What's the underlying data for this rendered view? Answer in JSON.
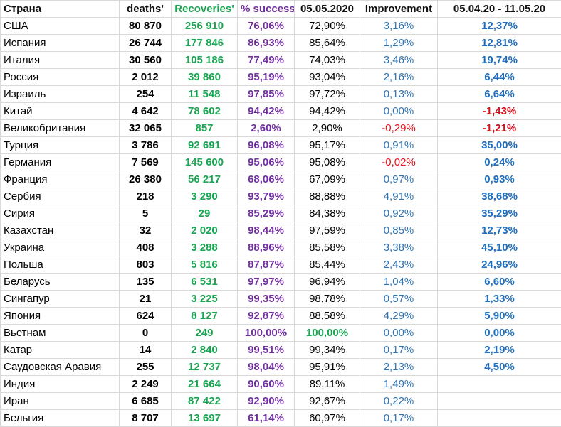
{
  "headers": [
    "Страна",
    "deaths'",
    "Recoveries'",
    "% success",
    "05.05.2020",
    "Improvement",
    "05.04.20 - 11.05.20"
  ],
  "rows": [
    {
      "country": "США",
      "deaths": "80 870",
      "recoveries": "256 910",
      "success": "76,06%",
      "may05": "72,90%",
      "improvement": "3,16%",
      "period": "12,37%"
    },
    {
      "country": "Испания",
      "deaths": "26 744",
      "recoveries": "177 846",
      "success": "86,93%",
      "may05": "85,64%",
      "improvement": "1,29%",
      "period": "12,81%"
    },
    {
      "country": "Италия",
      "deaths": "30 560",
      "recoveries": "105 186",
      "success": "77,49%",
      "may05": "74,03%",
      "improvement": "3,46%",
      "period": "19,74%"
    },
    {
      "country": "Россия",
      "deaths": "2 012",
      "recoveries": "39 860",
      "success": "95,19%",
      "may05": "93,04%",
      "improvement": "2,16%",
      "period": "6,44%"
    },
    {
      "country": "Израиль",
      "deaths": "254",
      "recoveries": "11 548",
      "success": "97,85%",
      "may05": "97,72%",
      "improvement": "0,13%",
      "period": "6,64%"
    },
    {
      "country": "Китай",
      "deaths": "4 642",
      "recoveries": "78 602",
      "success": "94,42%",
      "may05": "94,42%",
      "improvement": "0,00%",
      "period": "-1,43%"
    },
    {
      "country": "Великобритания",
      "deaths": "32 065",
      "recoveries": "857",
      "success": "2,60%",
      "may05": "2,90%",
      "improvement": "-0,29%",
      "period": "-1,21%"
    },
    {
      "country": "Турция",
      "deaths": "3 786",
      "recoveries": "92 691",
      "success": "96,08%",
      "may05": "95,17%",
      "improvement": "0,91%",
      "period": "35,00%"
    },
    {
      "country": "Германия",
      "deaths": "7 569",
      "recoveries": "145 600",
      "success": "95,06%",
      "may05": "95,08%",
      "improvement": "-0,02%",
      "period": "0,24%"
    },
    {
      "country": "Франция",
      "deaths": "26 380",
      "recoveries": "56 217",
      "success": "68,06%",
      "may05": "67,09%",
      "improvement": "0,97%",
      "period": "0,93%"
    },
    {
      "country": "Сербия",
      "deaths": "218",
      "recoveries": "3 290",
      "success": "93,79%",
      "may05": "88,88%",
      "improvement": "4,91%",
      "period": "38,68%"
    },
    {
      "country": "Сирия",
      "deaths": "5",
      "recoveries": "29",
      "success": "85,29%",
      "may05": "84,38%",
      "improvement": "0,92%",
      "period": "35,29%"
    },
    {
      "country": "Казахстан",
      "deaths": "32",
      "recoveries": "2 020",
      "success": "98,44%",
      "may05": "97,59%",
      "improvement": "0,85%",
      "period": "12,73%"
    },
    {
      "country": "Украина",
      "deaths": "408",
      "recoveries": "3 288",
      "success": "88,96%",
      "may05": "85,58%",
      "improvement": "3,38%",
      "period": "45,10%"
    },
    {
      "country": "Польша",
      "deaths": "803",
      "recoveries": "5 816",
      "success": "87,87%",
      "may05": "85,44%",
      "improvement": "2,43%",
      "period": "24,96%"
    },
    {
      "country": "Беларусь",
      "deaths": "135",
      "recoveries": "6 531",
      "success": "97,97%",
      "may05": "96,94%",
      "improvement": "1,04%",
      "period": "6,60%"
    },
    {
      "country": "Сингапур",
      "deaths": "21",
      "recoveries": "3 225",
      "success": "99,35%",
      "may05": "98,78%",
      "improvement": "0,57%",
      "period": "1,33%"
    },
    {
      "country": "Япония",
      "deaths": "624",
      "recoveries": "8 127",
      "success": "92,87%",
      "may05": "88,58%",
      "improvement": "4,29%",
      "period": "5,90%"
    },
    {
      "country": "Вьетнам",
      "deaths": "0",
      "recoveries": "249",
      "success": "100,00%",
      "may05": "100,00%",
      "improvement": "0,00%",
      "period": "0,00%"
    },
    {
      "country": "Катар",
      "deaths": "14",
      "recoveries": "2 840",
      "success": "99,51%",
      "may05": "99,34%",
      "improvement": "0,17%",
      "period": "2,19%"
    },
    {
      "country": "Саудовская Аравия",
      "deaths": "255",
      "recoveries": "12 737",
      "success": "98,04%",
      "may05": "95,91%",
      "improvement": "2,13%",
      "period": "4,50%"
    },
    {
      "country": "Индия",
      "deaths": "2 249",
      "recoveries": "21 664",
      "success": "90,60%",
      "may05": "89,11%",
      "improvement": "1,49%",
      "period": ""
    },
    {
      "country": "Иран",
      "deaths": "6 685",
      "recoveries": "87 422",
      "success": "92,90%",
      "may05": "92,67%",
      "improvement": "0,22%",
      "period": ""
    },
    {
      "country": "Бельгия",
      "deaths": "8 707",
      "recoveries": "13 697",
      "success": "61,14%",
      "may05": "60,97%",
      "improvement": "0,17%",
      "period": ""
    }
  ]
}
